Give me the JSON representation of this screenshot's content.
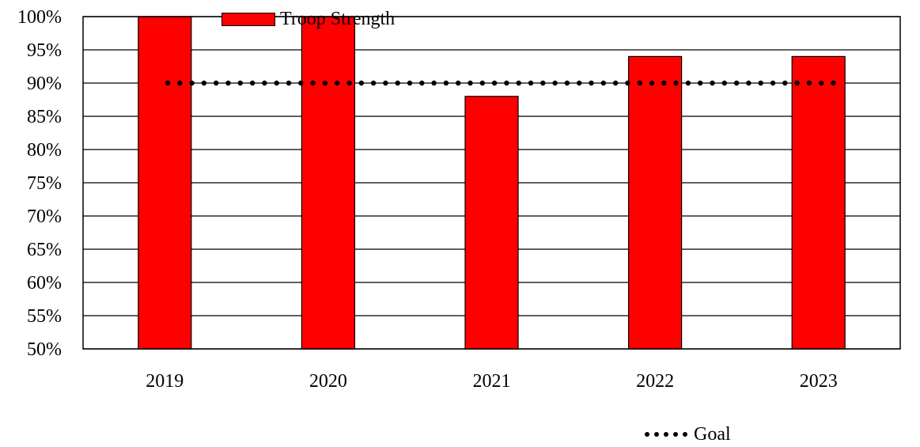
{
  "chart_data": {
    "type": "bar",
    "title": "",
    "xlabel": "",
    "ylabel": "",
    "categories": [
      "2019",
      "2020",
      "2021",
      "2022",
      "2023"
    ],
    "series": [
      {
        "name": "Troop Strength",
        "kind": "bar",
        "color": "#ff0000",
        "values": [
          100,
          100,
          88,
          94,
          94
        ]
      },
      {
        "name": "Goal",
        "kind": "dotted-line",
        "color": "#000000",
        "values": [
          90,
          90,
          90,
          90,
          90
        ]
      }
    ],
    "ylim": [
      50,
      100
    ],
    "yticks": [
      "50%",
      "55%",
      "60%",
      "65%",
      "70%",
      "75%",
      "80%",
      "85%",
      "90%",
      "95%",
      "100%"
    ],
    "grid": true,
    "legend_position": "bottom"
  }
}
